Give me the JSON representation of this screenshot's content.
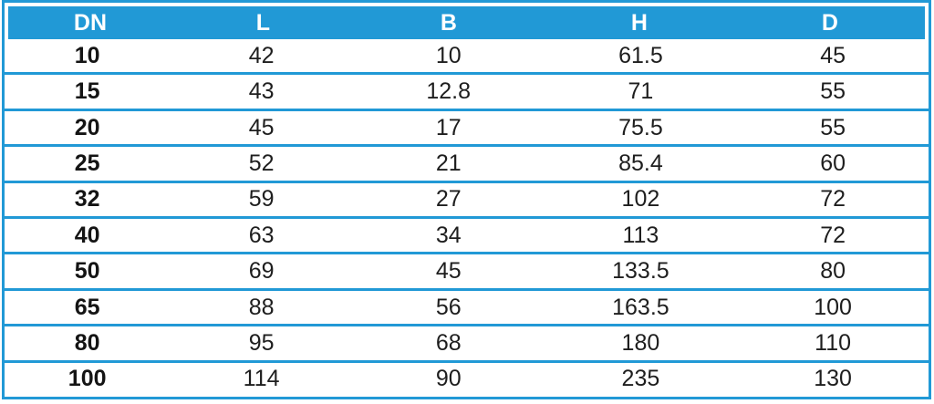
{
  "colors": {
    "accent": "#2199D6",
    "header_text": "#FFFFFF",
    "body_text": "#1E1E1E",
    "background": "#FFFFFF"
  },
  "chart_data": {
    "type": "table",
    "title": "",
    "columns": [
      "DN",
      "L",
      "B",
      "H",
      "D"
    ],
    "rows": [
      [
        "10",
        "42",
        "10",
        "61.5",
        "45"
      ],
      [
        "15",
        "43",
        "12.8",
        "71",
        "55"
      ],
      [
        "20",
        "45",
        "17",
        "75.5",
        "55"
      ],
      [
        "25",
        "52",
        "21",
        "85.4",
        "60"
      ],
      [
        "32",
        "59",
        "27",
        "102",
        "72"
      ],
      [
        "40",
        "63",
        "34",
        "113",
        "72"
      ],
      [
        "50",
        "69",
        "45",
        "133.5",
        "80"
      ],
      [
        "65",
        "88",
        "56",
        "163.5",
        "100"
      ],
      [
        "80",
        "95",
        "68",
        "180",
        "110"
      ],
      [
        "100",
        "114",
        "90",
        "235",
        "130"
      ]
    ],
    "layout": {
      "header_fill": "#2199D6",
      "grid": "horizontal-only",
      "first_column_bold": true
    }
  }
}
